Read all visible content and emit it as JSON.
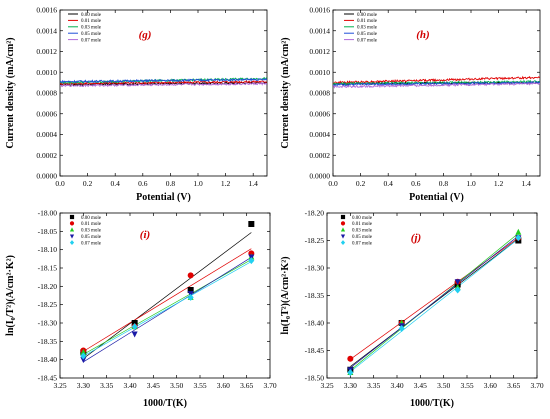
{
  "chart_data": [
    {
      "id": "g",
      "type": "line",
      "panel_label": "(g)",
      "xlabel": "Potential (V)",
      "ylabel": "Current density (mA/cm²)",
      "xlim": [
        0.0,
        1.5
      ],
      "ylim": [
        0.0,
        0.0016
      ],
      "x_ticks": [
        "0.0",
        "0.2",
        "0.4",
        "0.6",
        "0.8",
        "1.0",
        "1.2",
        "1.4"
      ],
      "y_ticks": [
        "0.0000",
        "0.0002",
        "0.0004",
        "0.0006",
        "0.0008",
        "0.0010",
        "0.0012",
        "0.0014",
        "0.0016"
      ],
      "legend_position": "top-left",
      "x": [
        0.0,
        1.5
      ],
      "series": [
        {
          "name": "0.00 mole",
          "color": "#000000",
          "values": [
            0.00088,
            0.0009
          ]
        },
        {
          "name": "0.01 mole",
          "color": "#e00000",
          "values": [
            0.00089,
            0.00091
          ]
        },
        {
          "name": "0.03 mole",
          "color": "#00b050",
          "values": [
            0.0009,
            0.00094
          ]
        },
        {
          "name": "0.05 mole",
          "color": "#1f4fd8",
          "values": [
            0.00091,
            0.00093
          ]
        },
        {
          "name": "0.07 mole",
          "color": "#b06ad8",
          "values": [
            0.00087,
            0.00089
          ]
        }
      ]
    },
    {
      "id": "h",
      "type": "line",
      "panel_label": "(h)",
      "xlabel": "Potential (V)",
      "ylabel": "Current density (mA/cm²)",
      "xlim": [
        0.0,
        1.5
      ],
      "ylim": [
        0.0,
        0.0016
      ],
      "x_ticks": [
        "0.0",
        "0.2",
        "0.4",
        "0.6",
        "0.8",
        "1.0",
        "1.2",
        "1.4"
      ],
      "y_ticks": [
        "0.0000",
        "0.0002",
        "0.0004",
        "0.0006",
        "0.0008",
        "0.0010",
        "0.0012",
        "0.0014",
        "0.0016"
      ],
      "legend_position": "top-left",
      "x": [
        0.0,
        1.5
      ],
      "series": [
        {
          "name": "0.00 mole",
          "color": "#000000",
          "values": [
            0.00089,
            0.0009
          ]
        },
        {
          "name": "0.01 mole",
          "color": "#e00000",
          "values": [
            0.0009,
            0.00095
          ]
        },
        {
          "name": "0.03 mole",
          "color": "#00b050",
          "values": [
            0.00089,
            0.00091
          ]
        },
        {
          "name": "0.05 mole",
          "color": "#1f4fd8",
          "values": [
            0.00088,
            0.0009
          ]
        },
        {
          "name": "0.07 mole",
          "color": "#b06ad8",
          "values": [
            0.00086,
            0.00089
          ]
        }
      ]
    },
    {
      "id": "i",
      "type": "scatter",
      "panel_label": "(i)",
      "xlabel": "1000/T(K)",
      "ylabel": "ln(I₀/T²)(A/cm²·K²)",
      "xlim": [
        3.25,
        3.7
      ],
      "ylim": [
        -18.45,
        -18.0
      ],
      "x_ticks": [
        "3.25",
        "3.30",
        "3.35",
        "3.40",
        "3.45",
        "3.50",
        "3.55",
        "3.60",
        "3.65",
        "3.70"
      ],
      "y_ticks": [
        "-18.45",
        "-18.40",
        "-18.35",
        "-18.30",
        "-18.25",
        "-18.20",
        "-18.15",
        "-18.10",
        "-18.05",
        "-18.00"
      ],
      "legend_position": "top-left",
      "x": [
        3.3,
        3.41,
        3.53,
        3.66
      ],
      "series": [
        {
          "name": "0.00 mole",
          "color": "#000000",
          "marker": "square",
          "values": [
            -18.38,
            -18.3,
            -18.21,
            -18.03
          ]
        },
        {
          "name": "0.01 mole",
          "color": "#e00000",
          "marker": "circle",
          "values": [
            -18.375,
            -18.31,
            -18.17,
            -18.11
          ]
        },
        {
          "name": "0.03 mole",
          "color": "#22cc22",
          "marker": "triangle-up",
          "values": [
            -18.38,
            -18.31,
            -18.23,
            -18.12
          ]
        },
        {
          "name": "0.05 mole",
          "color": "#1a1aa6",
          "marker": "triangle-down",
          "values": [
            -18.4,
            -18.33,
            -18.22,
            -18.12
          ]
        },
        {
          "name": "0.07 mole",
          "color": "#22d0f0",
          "marker": "diamond",
          "values": [
            -18.39,
            -18.31,
            -18.23,
            -18.13
          ]
        }
      ]
    },
    {
      "id": "j",
      "type": "scatter",
      "panel_label": "(j)",
      "xlabel": "1000/T(K)",
      "ylabel": "ln(I₀T²)(A/cm²·K²)",
      "xlim": [
        3.25,
        3.7
      ],
      "ylim": [
        -18.5,
        -18.2
      ],
      "x_ticks": [
        "3.25",
        "3.30",
        "3.35",
        "3.40",
        "3.45",
        "3.50",
        "3.55",
        "3.60",
        "3.65",
        "3.70"
      ],
      "y_ticks": [
        "-18.50",
        "-18.45",
        "-18.40",
        "-18.35",
        "-18.30",
        "-18.25",
        "-18.20"
      ],
      "legend_position": "top-left",
      "x": [
        3.3,
        3.41,
        3.53,
        3.66
      ],
      "series": [
        {
          "name": "0.00 mole",
          "color": "#000000",
          "marker": "square",
          "values": [
            -18.485,
            -18.4,
            -18.33,
            -18.25
          ]
        },
        {
          "name": "0.01 mole",
          "color": "#e00000",
          "marker": "circle",
          "values": [
            -18.465,
            -18.4,
            -18.325,
            -18.245
          ]
        },
        {
          "name": "0.03 mole",
          "color": "#22cc22",
          "marker": "triangle-up",
          "values": [
            -18.49,
            -18.4,
            -18.335,
            -18.235
          ]
        },
        {
          "name": "0.05 mole",
          "color": "#1a1aa6",
          "marker": "triangle-down",
          "values": [
            -18.485,
            -18.405,
            -18.325,
            -18.245
          ]
        },
        {
          "name": "0.07 mole",
          "color": "#22d0f0",
          "marker": "diamond",
          "values": [
            -18.49,
            -18.41,
            -18.34,
            -18.245
          ]
        }
      ]
    }
  ]
}
